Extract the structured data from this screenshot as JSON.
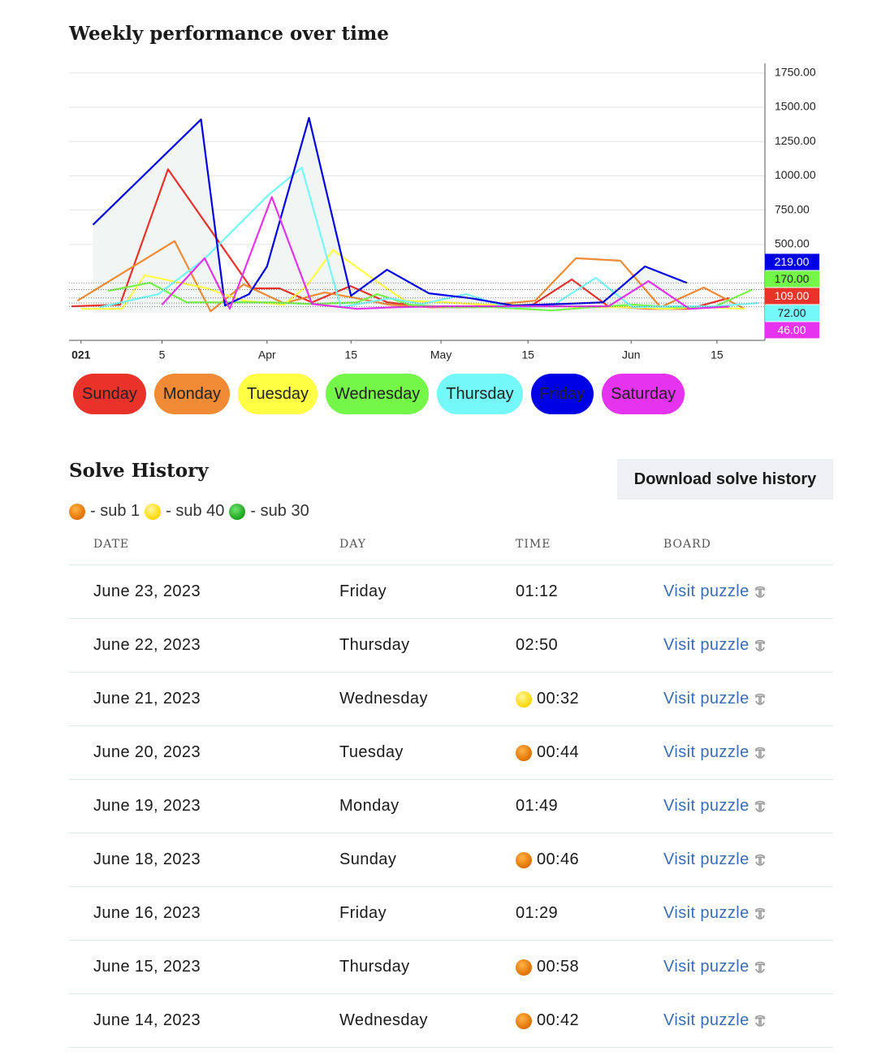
{
  "chart_heading": "Weekly performance over time",
  "chart_data": {
    "type": "line",
    "xlim": [
      0,
      116
    ],
    "ylim": [
      -200,
      1820
    ],
    "xticks": [
      {
        "value": 2,
        "label": "021",
        "bold": true
      },
      {
        "value": 15.5,
        "label": "5"
      },
      {
        "value": 33,
        "label": "Apr"
      },
      {
        "value": 47,
        "label": "15"
      },
      {
        "value": 62,
        "label": "May"
      },
      {
        "value": 76.5,
        "label": "15"
      },
      {
        "value": 93.7,
        "label": "Jun"
      },
      {
        "value": 108,
        "label": "15"
      }
    ],
    "yticks": [
      {
        "value": 500,
        "label": "500.00"
      },
      {
        "value": 750,
        "label": "750.00"
      },
      {
        "value": 1000,
        "label": "1000.00"
      },
      {
        "value": 1250,
        "label": "1250.00"
      },
      {
        "value": 1500,
        "label": "1500.00"
      },
      {
        "value": 1750,
        "label": "1750.00"
      }
    ],
    "grid": true,
    "series": [
      {
        "name": "Sunday",
        "color": "#e8322a",
        "x": [
          0.4,
          8.5,
          16.5,
          30.4,
          35.1,
          40.5,
          46.9,
          53.1,
          60.1,
          67.3,
          77.3,
          83.8,
          89.9,
          96.6,
          103.4,
          110
        ],
        "values": [
          48,
          60,
          1048,
          179,
          179,
          77,
          196,
          77,
          42,
          42,
          60,
          244,
          48,
          30,
          30,
          109
        ],
        "last_label": "109.00"
      },
      {
        "name": "Monday",
        "color": "#f08a35",
        "x": [
          1.4,
          17.6,
          23.6,
          29.1,
          35.8,
          42.6,
          48,
          53.4,
          60.1,
          67.3,
          77.7,
          84.5,
          91.9,
          98.6,
          105.8,
          112.6
        ],
        "values": [
          89,
          524,
          12,
          208,
          71,
          149,
          107,
          60,
          42,
          48,
          89,
          399,
          381,
          42,
          185,
          30
        ]
      },
      {
        "name": "Tuesday",
        "color": "#ffff44",
        "x": [
          2,
          8.8,
          12.6,
          23,
          29.1,
          35.8,
          39.6,
          44,
          52,
          56,
          62.8,
          69.6,
          77,
          85,
          92.4,
          99.3,
          106,
          112.6
        ],
        "values": [
          30,
          30,
          274,
          179,
          89,
          60,
          196,
          458,
          208,
          89,
          77,
          60,
          60,
          42,
          42,
          30,
          42,
          30
        ]
      },
      {
        "name": "Wednesday",
        "color": "#75f74a",
        "x": [
          6.5,
          13.5,
          19.6,
          26.8,
          33.8,
          40.5,
          48,
          51.4,
          56.8,
          63.5,
          70.9,
          80.4,
          87.2,
          93.9,
          100.7,
          107.4,
          113.9
        ],
        "values": [
          161,
          220,
          77,
          77,
          77,
          65,
          77,
          137,
          60,
          42,
          42,
          18,
          42,
          60,
          42,
          42,
          170
        ],
        "last_label": "170.00"
      },
      {
        "name": "Thursday",
        "color": "#74f8f8",
        "x": [
          5.1,
          14.9,
          22.4,
          33.3,
          38.8,
          45.3,
          53.4,
          58.8,
          66.2,
          73,
          80.4,
          87.8,
          93.9,
          100.7,
          107.4,
          114.9
        ],
        "values": [
          42,
          137,
          387,
          863,
          1060,
          42,
          107,
          65,
          137,
          42,
          48,
          256,
          42,
          48,
          48,
          72
        ],
        "last_label": "72.00"
      },
      {
        "name": "Friday",
        "color": "#0000e6",
        "area_color": "#f1f5f3",
        "x": [
          4,
          22,
          26,
          30,
          33,
          40,
          47,
          53,
          60,
          67,
          74,
          82,
          89,
          96,
          103
        ],
        "values": [
          643,
          1411,
          54,
          137,
          339,
          1423,
          125,
          315,
          143,
          107,
          54,
          65,
          77,
          339,
          219
        ],
        "last_label": "219.00"
      },
      {
        "name": "Saturday",
        "color": "#e633ef",
        "x": [
          15.5,
          22.6,
          26.8,
          33.8,
          40.5,
          48,
          54.7,
          62.2,
          69.6,
          77,
          84.5,
          89.9,
          96.6,
          103.4,
          110
        ],
        "values": [
          60,
          399,
          30,
          845,
          65,
          30,
          42,
          48,
          48,
          48,
          48,
          48,
          232,
          30,
          46
        ],
        "last_label": "46.00"
      }
    ]
  },
  "history": {
    "title": "Solve History",
    "download_button": "Download solve history",
    "badge_legend": [
      {
        "badge": "orange",
        "text": "- sub 1"
      },
      {
        "badge": "yellow",
        "text": "- sub 40"
      },
      {
        "badge": "green",
        "text": "- sub 30"
      }
    ],
    "columns": [
      "DATE",
      "DAY",
      "TIME",
      "BOARD"
    ],
    "rows": [
      {
        "date": "June 23, 2023",
        "day": "Friday",
        "time": "01:12",
        "board": "Visit puzzle"
      },
      {
        "date": "June 22, 2023",
        "day": "Thursday",
        "time": "02:50",
        "board": "Visit puzzle"
      },
      {
        "date": "June 21, 2023",
        "day": "Wednesday",
        "time": "00:32",
        "badge": "yellow",
        "board": "Visit puzzle"
      },
      {
        "date": "June 20, 2023",
        "day": "Tuesday",
        "time": "00:44",
        "badge": "orange",
        "board": "Visit puzzle"
      },
      {
        "date": "June 19, 2023",
        "day": "Monday",
        "time": "01:49",
        "board": "Visit puzzle"
      },
      {
        "date": "June 18, 2023",
        "day": "Sunday",
        "time": "00:46",
        "badge": "orange",
        "board": "Visit puzzle"
      },
      {
        "date": "June 16, 2023",
        "day": "Friday",
        "time": "01:29",
        "board": "Visit puzzle"
      },
      {
        "date": "June 15, 2023",
        "day": "Thursday",
        "time": "00:58",
        "badge": "orange",
        "board": "Visit puzzle"
      },
      {
        "date": "June 14, 2023",
        "day": "Wednesday",
        "time": "00:42",
        "badge": "orange",
        "board": "Visit puzzle"
      }
    ]
  }
}
